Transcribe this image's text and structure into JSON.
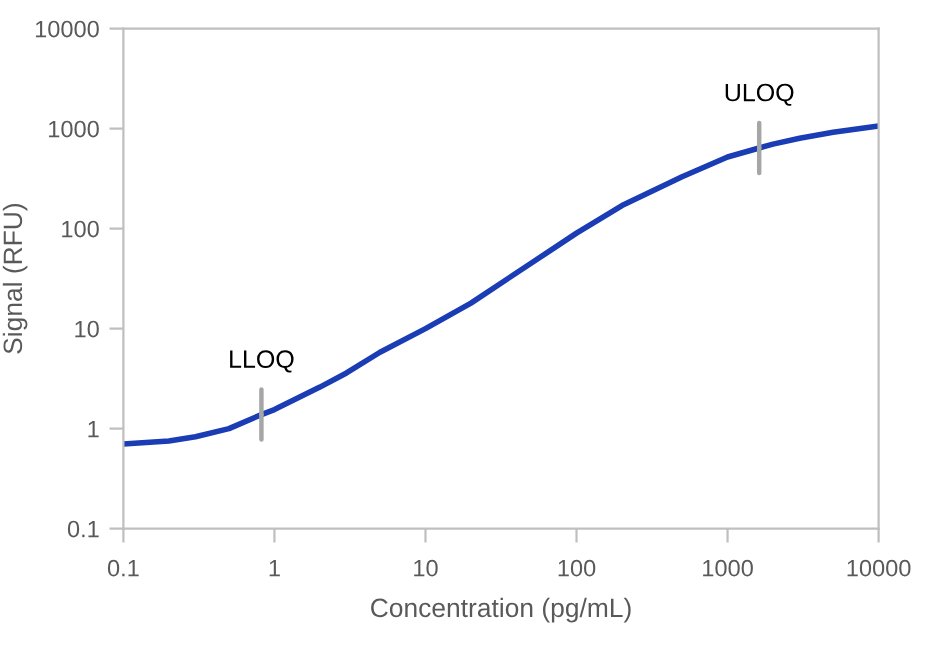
{
  "chart_data": {
    "type": "line",
    "xlabel": "Concentration (pg/mL)",
    "ylabel": "Signal (RFU)",
    "log": "xy",
    "grid": false,
    "marker": "none",
    "line_style": "solid",
    "xlim": [
      0.1,
      10000
    ],
    "ylim": [
      0.1,
      10000
    ],
    "xticks": [
      0.1,
      1,
      10,
      100,
      1000,
      10000
    ],
    "yticks": [
      0.1,
      1,
      10,
      100,
      1000,
      10000
    ],
    "series": [
      {
        "color": "#1a3cb4",
        "x": [
          0.1,
          0.2,
          0.3,
          0.5,
          0.82,
          1,
          2,
          3,
          5,
          10,
          20,
          50,
          100,
          200,
          500,
          1000,
          1620,
          2000,
          3000,
          5000,
          10000
        ],
        "values": [
          0.7,
          0.75,
          0.83,
          1.0,
          1.38,
          1.55,
          2.6,
          3.6,
          5.8,
          10,
          18,
          45,
          90,
          170,
          330,
          520,
          640,
          700,
          800,
          920,
          1060
        ]
      }
    ],
    "annotations": [
      {
        "text": "LLOQ",
        "x": 0.82,
        "y": 1.38
      },
      {
        "text": "ULOQ",
        "x": 1620,
        "y": 640
      }
    ]
  }
}
